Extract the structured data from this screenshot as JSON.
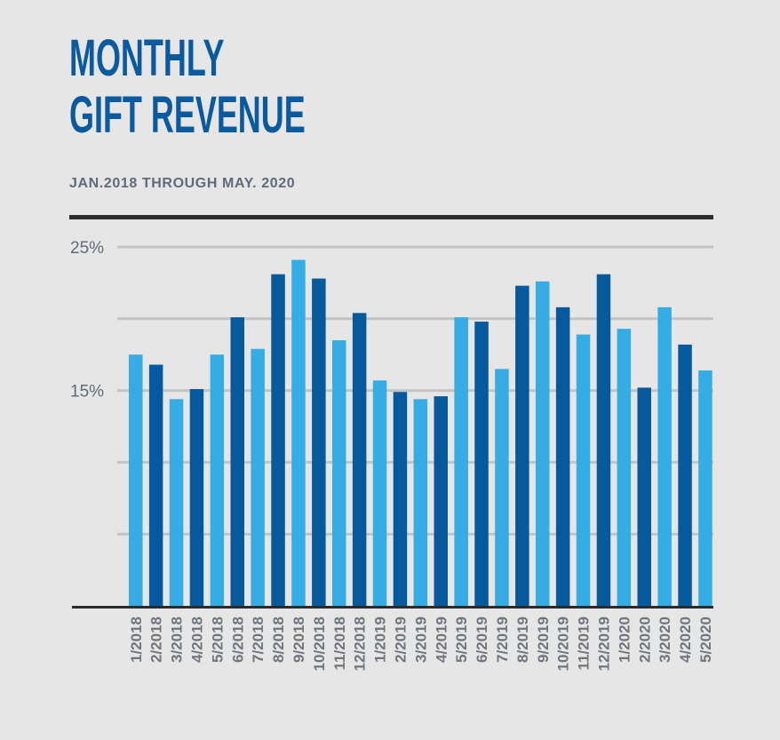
{
  "header": {
    "title_line1": "MONTHLY",
    "title_line2": "GIFT REVENUE",
    "subtitle": "JAN.2018 THROUGH MAY. 2020"
  },
  "colors": {
    "background": "#e6e6e6",
    "title": "#0a5aa0",
    "subtitle": "#5f6b78",
    "bar_light": "#35ace3",
    "bar_dark": "#055a9e",
    "gridline": "#c3c3c3",
    "axis": "#2b2b2b"
  },
  "chart_data": {
    "type": "bar",
    "title": "MONTHLY GIFT REVENUE",
    "subtitle": "JAN.2018 THROUGH MAY. 2020",
    "xlabel": "",
    "ylabel": "",
    "ylim": [
      0,
      25
    ],
    "ytick_values": [
      15,
      25
    ],
    "ytick_labels": [
      "15%",
      "25%"
    ],
    "gridlines": [
      5,
      10,
      15,
      20,
      25
    ],
    "grid": true,
    "categories": [
      "1/2018",
      "2/2018",
      "3/2018",
      "4/2018",
      "5/2018",
      "6/2018",
      "7/2018",
      "8/2018",
      "9/2018",
      "10/2018",
      "11/2018",
      "12/2018",
      "1/2019",
      "2/2019",
      "3/2019",
      "4/2019",
      "5/2019",
      "6/2019",
      "7/2019",
      "8/2019",
      "9/2019",
      "10/2019",
      "11/2019",
      "12/2019",
      "1/2020",
      "2/2020",
      "3/2020",
      "4/2020",
      "5/2020"
    ],
    "values": [
      17.5,
      16.8,
      14.4,
      15.1,
      17.5,
      20.1,
      17.9,
      23.1,
      24.1,
      22.8,
      18.5,
      20.4,
      15.7,
      14.9,
      14.4,
      14.6,
      20.1,
      19.8,
      16.5,
      22.3,
      22.6,
      20.8,
      18.9,
      23.1,
      19.3,
      15.2,
      20.8,
      18.2,
      16.4
    ],
    "bar_shades": [
      "light",
      "dark",
      "light",
      "dark",
      "light",
      "dark",
      "light",
      "dark",
      "light",
      "dark",
      "light",
      "dark",
      "light",
      "dark",
      "light",
      "dark",
      "light",
      "dark",
      "light",
      "dark",
      "light",
      "dark",
      "light",
      "dark",
      "light",
      "dark",
      "light",
      "dark",
      "light"
    ]
  }
}
